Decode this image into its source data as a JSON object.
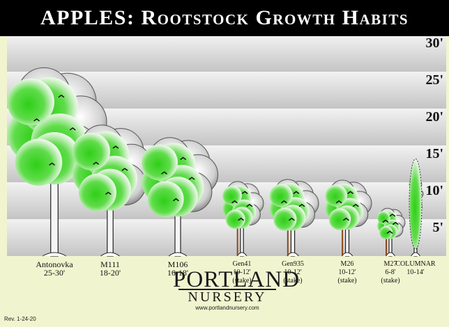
{
  "header": {
    "title": "APPLES: Rootstock Growth Habits"
  },
  "scale": {
    "unit": "ft",
    "ticks": [
      "30'",
      "25'",
      "20'",
      "15'",
      "10'",
      "5'"
    ]
  },
  "trees": [
    {
      "name": "Antonovka",
      "size": "25-30'",
      "note": ""
    },
    {
      "name": "M111",
      "size": "18-20'",
      "note": ""
    },
    {
      "name": "M106",
      "size": "16-18'",
      "note": ""
    },
    {
      "name": "Gen41",
      "size": "10-12'",
      "note": "(stake)"
    },
    {
      "name": "Gen935",
      "size": "10-12'",
      "note": "(stake)"
    },
    {
      "name": "M26",
      "size": "10-12'",
      "note": "(stake)"
    },
    {
      "name": "M27",
      "size": "6-8'",
      "note": "(stake)"
    },
    {
      "name": "COLUMNAR",
      "size": "10-14'",
      "note": ""
    }
  ],
  "logo": {
    "top": "PORTLAND",
    "bottom": "NURSERY",
    "url": "www.portlandnursery.com"
  },
  "footer": {
    "revision": "Rev. 1-24-20"
  },
  "colors": {
    "banner": "#000000",
    "background": "#f1f5cf",
    "foliage": "#33cc1c",
    "band_light": "#e8e8e8",
    "band_dark": "#c9c9c9"
  }
}
